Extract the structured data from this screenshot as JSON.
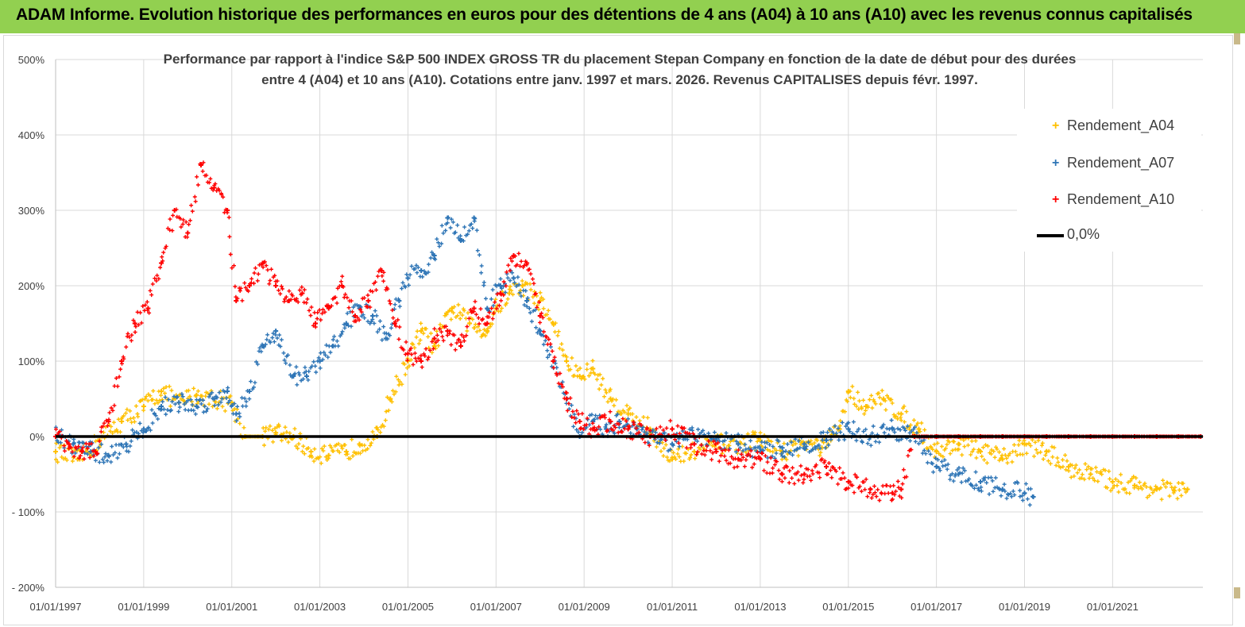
{
  "header": {
    "title": "ADAM Informe. Evolution historique des performances en euros pour des détentions de 4 ans (A04) à 10 ans (A10) avec les revenus connus capitalisés"
  },
  "chart_data": {
    "type": "scatter",
    "title_line1": "Performance par rapport à l'indice S&P 500 INDEX GROSS TR  du placement Stepan Company en fonction de la date de début pour des durées",
    "title_line2": "entre 4 (A04) et 10 ans (A10). Cotations entre janv. 1997 et mars. 2026. Revenus CAPITALISES depuis févr. 1997.",
    "ylim": [
      -200,
      500
    ],
    "xlim": [
      1997.0,
      2023.05
    ],
    "yticks": [
      500,
      400,
      300,
      200,
      100,
      0,
      -100,
      -200
    ],
    "ytick_labels": [
      "500%",
      "400%",
      "300%",
      "200%",
      "100%",
      "0%",
      "- 100%",
      "- 200%"
    ],
    "xticks": [
      1997,
      1999,
      2001,
      2003,
      2005,
      2007,
      2009,
      2011,
      2013,
      2015,
      2017,
      2019,
      2021
    ],
    "xtick_labels": [
      "01/01/1997",
      "01/01/1999",
      "01/01/2001",
      "01/01/2003",
      "01/01/2005",
      "01/01/2007",
      "01/01/2009",
      "01/01/2011",
      "01/01/2013",
      "01/01/2015",
      "01/01/2017",
      "01/01/2019",
      "01/01/2021"
    ],
    "grid": true,
    "legend_position": "top-right",
    "series": [
      {
        "name": "Rendement_A04",
        "color": "#ffc000",
        "marker": "+",
        "x": [
          1997.0,
          1997.5,
          1998.0,
          1998.5,
          1999.0,
          1999.4,
          1999.8,
          2000.2,
          2000.6,
          2001.0,
          2001.3,
          2001.7,
          2002.0,
          2002.4,
          2002.8,
          2003.2,
          2003.6,
          2003.9,
          2004.3,
          2004.6,
          2005.0,
          2005.3,
          2005.6,
          2006.0,
          2006.4,
          2006.8,
          2007.0,
          2007.3,
          2007.6,
          2008.0,
          2008.3,
          2008.6,
          2008.9,
          2009.2,
          2009.6,
          2010.0,
          2010.5,
          2011.0,
          2011.5,
          2012.0,
          2012.5,
          2013.0,
          2013.5,
          2014.0,
          2014.4,
          2014.8,
          2015.0,
          2015.4,
          2015.8,
          2016.2,
          2016.6,
          2017.0,
          2017.5,
          2018.0,
          2018.5,
          2019.0,
          2019.5,
          2020.0,
          2020.5,
          2021.0,
          2021.5,
          2022.0,
          2022.4,
          2022.7
        ],
        "y": [
          -20,
          -30,
          -5,
          20,
          40,
          60,
          45,
          55,
          50,
          45,
          0,
          0,
          5,
          0,
          -20,
          -25,
          -20,
          -10,
          0,
          50,
          100,
          140,
          120,
          170,
          150,
          140,
          170,
          190,
          200,
          180,
          150,
          100,
          80,
          90,
          50,
          30,
          10,
          -30,
          -20,
          -10,
          -10,
          -5,
          -20,
          -10,
          -15,
          10,
          60,
          40,
          50,
          30,
          10,
          -20,
          -10,
          -20,
          -30,
          -10,
          -20,
          -40,
          -50,
          -60,
          -65,
          -70,
          -72,
          -70
        ]
      },
      {
        "name": "Rendement_A07",
        "color": "#2e75b6",
        "marker": "+",
        "x": [
          1997.0,
          1997.4,
          1997.8,
          1998.2,
          1998.6,
          1999.0,
          1999.4,
          1999.8,
          2000.2,
          2000.6,
          2000.9,
          2001.1,
          2001.4,
          2001.7,
          2002.0,
          2002.4,
          2002.7,
          2003.0,
          2003.3,
          2003.6,
          2003.9,
          2004.2,
          2004.5,
          2004.8,
          2005.0,
          2005.3,
          2005.6,
          2005.9,
          2006.2,
          2006.5,
          2006.8,
          2007.1,
          2007.4,
          2007.7,
          2008.0,
          2008.3,
          2008.6,
          2008.9,
          2009.2,
          2009.5,
          2009.8,
          2010.2,
          2010.6,
          2011.0,
          2011.5,
          2012.0,
          2012.5,
          2013.0,
          2013.5,
          2014.0,
          2014.5,
          2015.0,
          2015.5,
          2016.0,
          2016.5,
          2017.0,
          2017.5,
          2018.0,
          2018.5,
          2019.0,
          2019.2
        ],
        "y": [
          0,
          -10,
          -20,
          -25,
          -10,
          10,
          40,
          45,
          40,
          50,
          60,
          30,
          60,
          120,
          140,
          80,
          80,
          100,
          120,
          150,
          170,
          160,
          130,
          180,
          210,
          220,
          240,
          290,
          260,
          290,
          170,
          200,
          210,
          180,
          140,
          100,
          50,
          0,
          20,
          10,
          20,
          10,
          0,
          -10,
          0,
          -5,
          -10,
          -20,
          -15,
          -10,
          -5,
          10,
          0,
          10,
          0,
          -40,
          -50,
          -60,
          -70,
          -75,
          -80
        ]
      },
      {
        "name": "Rendement_A10",
        "color": "#ff0000",
        "marker": "+",
        "x": [
          1997.0,
          1997.3,
          1997.6,
          1997.9,
          1998.2,
          1998.5,
          1998.8,
          1999.1,
          1999.4,
          1999.7,
          2000.0,
          2000.3,
          2000.6,
          2000.9,
          2001.1,
          2001.4,
          2001.7,
          2002.0,
          2002.3,
          2002.6,
          2002.9,
          2003.2,
          2003.5,
          2003.8,
          2004.1,
          2004.4,
          2004.7,
          2005.0,
          2005.3,
          2005.6,
          2005.9,
          2006.2,
          2006.5,
          2006.8,
          2007.1,
          2007.4,
          2007.7,
          2008.0,
          2008.3,
          2008.6,
          2008.9,
          2009.2,
          2009.6,
          2010.0,
          2010.5,
          2011.0,
          2011.5,
          2012.0,
          2012.5,
          2013.0,
          2013.5,
          2014.0,
          2014.5,
          2015.0,
          2015.5,
          2016.0,
          2016.2,
          2016.5,
          2017.0,
          2017.5,
          2018.0,
          2018.5,
          2019.0,
          2019.5,
          2020.0,
          2020.5,
          2021.0,
          2021.5,
          2022.0,
          2022.5,
          2023.0
        ],
        "y": [
          0,
          -10,
          -20,
          -20,
          20,
          100,
          150,
          170,
          230,
          300,
          270,
          360,
          330,
          300,
          180,
          200,
          230,
          200,
          180,
          190,
          150,
          170,
          200,
          160,
          180,
          220,
          150,
          110,
          100,
          130,
          140,
          120,
          170,
          150,
          190,
          240,
          230,
          160,
          100,
          50,
          20,
          10,
          20,
          10,
          0,
          10,
          -10,
          -20,
          -30,
          -30,
          -50,
          -50,
          -40,
          -60,
          -70,
          -75,
          -70,
          0,
          0,
          0,
          0,
          0,
          0,
          0,
          0,
          0,
          0,
          0,
          0,
          0,
          0
        ]
      },
      {
        "name": "0,0%",
        "color": "#000000",
        "marker": "line",
        "x": [
          1997.0,
          2023.05
        ],
        "y": [
          0,
          0
        ]
      }
    ]
  },
  "corner": {
    "color": "#c9b98a"
  }
}
